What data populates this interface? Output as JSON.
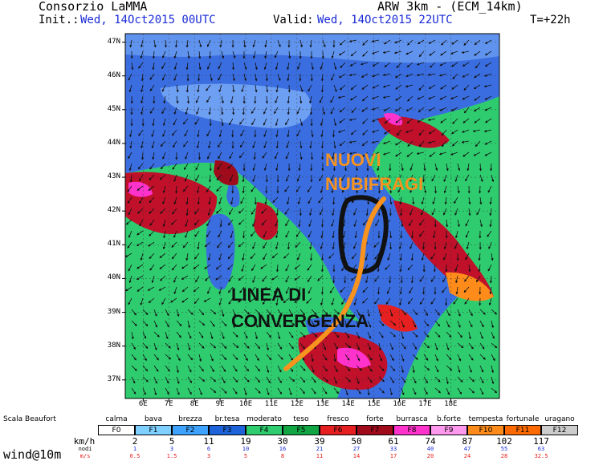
{
  "header": {
    "org": "Consorzio LaMMA",
    "model": "ARW 3km - (ECM_14km)",
    "init_label": "Init.:",
    "init_value": "Wed, 14Oct2015 00UTC",
    "valid_label": "Valid:",
    "valid_value": "Wed, 14Oct2015 22UTC",
    "lead": "T=+22h"
  },
  "map": {
    "lat_labels": [
      "47N",
      "46N",
      "45N",
      "44N",
      "43N",
      "42N",
      "41N",
      "40N",
      "39N",
      "38N",
      "37N"
    ],
    "lon_labels": [
      "6E",
      "7E",
      "8E",
      "9E",
      "10E",
      "11E",
      "12E",
      "13E",
      "14E",
      "15E",
      "16E",
      "17E",
      "18E"
    ],
    "annotation_1": [
      "NUOVI",
      "NUBIFRAGI"
    ],
    "annotation_2": [
      "LINEA DI",
      "CONVERGENZA"
    ],
    "colors": {
      "annotation_1": "#f7931e",
      "annotation_2": "#111111",
      "sea": "#2ecc6e",
      "land": "#3a6ee0",
      "high_wind": "#c0102a",
      "extreme": "#ff33cc"
    }
  },
  "scale": {
    "title": "Scala Beaufort",
    "names": [
      "calma",
      "bava",
      "brezza",
      "br.tesa",
      "moderato",
      "teso",
      "fresco",
      "forte",
      "burrasca",
      "b.forte",
      "tempesta",
      "fortunale",
      "uragano"
    ],
    "codes": [
      "F0",
      "F1",
      "F2",
      "F3",
      "F4",
      "F5",
      "F6",
      "F7",
      "F8",
      "F9",
      "F10",
      "F11",
      "F12"
    ],
    "colors": [
      "#ffffff",
      "#7fd0ff",
      "#3ea3ff",
      "#1e63d9",
      "#2ecc6e",
      "#12a544",
      "#e62020",
      "#a00b1c",
      "#ff33cc",
      "#ff99ee",
      "#ff8c1a",
      "#ff6a00",
      "#cccccc"
    ],
    "kmh_label": "km/h",
    "kmh": [
      "2",
      "5",
      "11",
      "19",
      "30",
      "39",
      "50",
      "61",
      "74",
      "87",
      "102",
      "117"
    ],
    "nodi_label": "nodi",
    "nodi": [
      "1",
      "3",
      "6",
      "10",
      "16",
      "21",
      "27",
      "33",
      "40",
      "47",
      "55",
      "63"
    ],
    "ms_label": "m/s",
    "ms": [
      "0.5",
      "1.5",
      "3",
      "5",
      "8",
      "11",
      "14",
      "17",
      "20",
      "24",
      "28",
      "32.5"
    ],
    "field_label": "wind@10m"
  }
}
